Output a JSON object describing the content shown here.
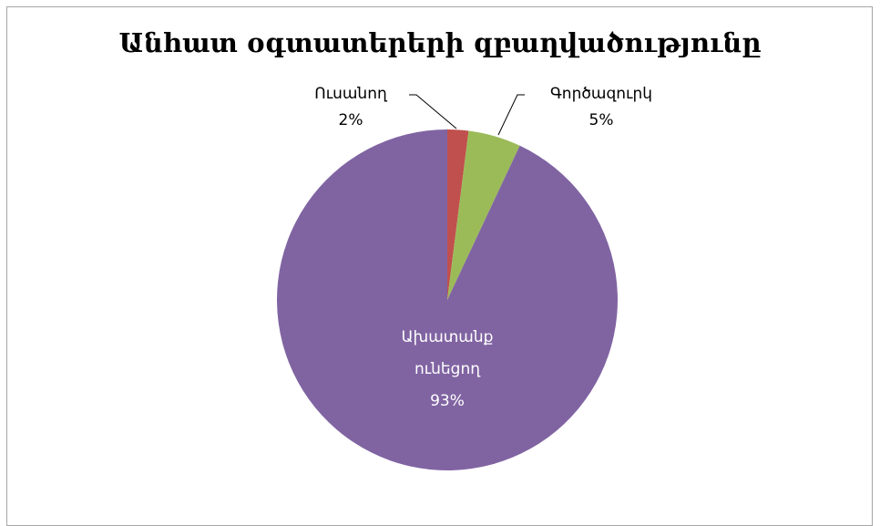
{
  "chart_data": {
    "type": "pie",
    "title": "Անհատ օգտատերերի զբաղվածությունը",
    "categories": [
      "Ուսանող",
      "Գործազուրկ",
      "Ախատանք ունեցող"
    ],
    "values": [
      2,
      5,
      93
    ],
    "value_labels": [
      "2%",
      "5%",
      "93%"
    ],
    "colors": [
      "#c0504d",
      "#9bbb59",
      "#8064a2"
    ]
  }
}
